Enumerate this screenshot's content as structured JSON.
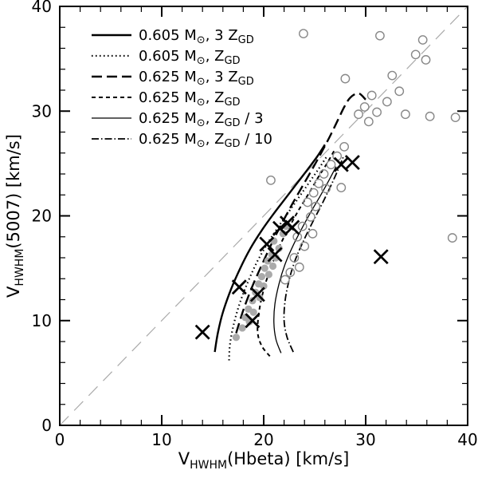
{
  "chart_data": {
    "type": "scatter",
    "title": "",
    "xlabel": {
      "pre": "V",
      "sub": "HWHM",
      "post": "(Hbeta) [km/s]"
    },
    "ylabel": {
      "pre": "V",
      "sub": "HWHM",
      "post": "(5007) [km/s]"
    },
    "xlim": [
      0,
      40
    ],
    "ylim": [
      0,
      40
    ],
    "xticks": [
      0,
      10,
      20,
      30,
      40
    ],
    "yticks": [
      0,
      10,
      20,
      30,
      40
    ],
    "minor_tick_step": 2,
    "grid": false,
    "legend_position": "top-left",
    "colors": {
      "axis": "#000000",
      "identity_line": "#aaaaaa",
      "open_circle": "#888888",
      "filled_circle": "#aaaaaa",
      "cross": "#000000",
      "track": "#000000"
    },
    "identity_line": {
      "from": [
        0,
        0
      ],
      "to": [
        40,
        40
      ],
      "style": "long-dash-gray"
    },
    "legend": [
      {
        "text1": "0.605 M",
        "sub1": "⊙",
        "text2": ", 3 Z",
        "sub2": "GD",
        "text3": "",
        "style": "solid-thick"
      },
      {
        "text1": "0.605 M",
        "sub1": "⊙",
        "text2": ", Z",
        "sub2": "GD",
        "text3": "",
        "style": "dotted"
      },
      {
        "text1": "0.625 M",
        "sub1": "⊙",
        "text2": ", 3 Z",
        "sub2": "GD",
        "text3": "",
        "style": "long-dash"
      },
      {
        "text1": "0.625 M",
        "sub1": "⊙",
        "text2": ", Z",
        "sub2": "GD",
        "text3": "",
        "style": "short-dash"
      },
      {
        "text1": "0.625 M",
        "sub1": "⊙",
        "text2": ", Z",
        "sub2": "GD",
        "text3": " / 3",
        "style": "solid-thin"
      },
      {
        "text1": "0.625 M",
        "sub1": "⊙",
        "text2": ", Z",
        "sub2": "GD",
        "text3": " / 10",
        "style": "dash-dot"
      }
    ],
    "tracks": [
      {
        "name": "0.605 Msun 3 Zgd",
        "style": "solid-thick",
        "points": [
          [
            15.2,
            7.0
          ],
          [
            15.5,
            8.8
          ],
          [
            16.0,
            10.8
          ],
          [
            16.8,
            13.0
          ],
          [
            17.7,
            15.0
          ],
          [
            18.7,
            16.9
          ],
          [
            19.8,
            18.6
          ],
          [
            20.9,
            20.1
          ],
          [
            22.0,
            21.5
          ],
          [
            23.1,
            22.9
          ],
          [
            24.2,
            24.3
          ],
          [
            25.2,
            25.6
          ],
          [
            26.0,
            26.8
          ]
        ]
      },
      {
        "name": "0.605 Msun Zgd",
        "style": "dotted",
        "points": [
          [
            16.6,
            6.2
          ],
          [
            16.7,
            7.8
          ],
          [
            17.1,
            9.8
          ],
          [
            17.7,
            11.8
          ],
          [
            18.5,
            13.8
          ],
          [
            19.4,
            15.7
          ],
          [
            20.4,
            17.4
          ],
          [
            21.4,
            18.9
          ],
          [
            22.4,
            20.3
          ],
          [
            23.4,
            21.7
          ],
          [
            24.4,
            23.1
          ],
          [
            25.4,
            24.5
          ],
          [
            26.2,
            25.7
          ]
        ]
      },
      {
        "name": "0.625 Msun 3 Zgd",
        "style": "long-dash",
        "points": [
          [
            17.3,
            8.8
          ],
          [
            18.0,
            11.0
          ],
          [
            18.9,
            13.3
          ],
          [
            19.9,
            15.5
          ],
          [
            20.9,
            17.6
          ],
          [
            21.9,
            19.5
          ],
          [
            22.9,
            21.3
          ],
          [
            23.9,
            23.0
          ],
          [
            24.9,
            24.7
          ],
          [
            25.8,
            26.3
          ],
          [
            26.6,
            27.8
          ],
          [
            27.3,
            29.2
          ],
          [
            27.9,
            30.4
          ],
          [
            28.5,
            31.3
          ],
          [
            29.3,
            31.7
          ],
          [
            30.0,
            31.1
          ]
        ]
      },
      {
        "name": "0.625 Msun Zgd",
        "style": "short-dash",
        "points": [
          [
            20.6,
            6.6
          ],
          [
            19.8,
            7.6
          ],
          [
            19.4,
            9.0
          ],
          [
            19.6,
            11.2
          ],
          [
            20.1,
            13.3
          ],
          [
            20.8,
            15.3
          ],
          [
            21.6,
            17.2
          ],
          [
            22.5,
            18.9
          ],
          [
            23.4,
            20.5
          ],
          [
            24.4,
            22.1
          ],
          [
            25.3,
            23.6
          ],
          [
            26.2,
            25.0
          ],
          [
            26.9,
            26.2
          ]
        ]
      },
      {
        "name": "0.625 Msun Zgd/3",
        "style": "solid-thin",
        "points": [
          [
            21.7,
            6.9
          ],
          [
            21.2,
            8.2
          ],
          [
            21.0,
            9.8
          ],
          [
            21.1,
            11.6
          ],
          [
            21.5,
            13.5
          ],
          [
            22.1,
            15.4
          ],
          [
            22.9,
            17.2
          ],
          [
            23.8,
            18.9
          ],
          [
            24.7,
            20.5
          ],
          [
            25.6,
            22.0
          ],
          [
            26.4,
            23.4
          ],
          [
            27.1,
            24.7
          ]
        ]
      },
      {
        "name": "0.625 Msun Zgd/10",
        "style": "dash-dot",
        "points": [
          [
            22.9,
            7.0
          ],
          [
            22.3,
            8.4
          ],
          [
            22.0,
            10.0
          ],
          [
            22.1,
            11.9
          ],
          [
            22.5,
            13.9
          ],
          [
            23.1,
            15.8
          ],
          [
            23.9,
            17.6
          ],
          [
            24.8,
            19.4
          ],
          [
            25.7,
            21.1
          ],
          [
            26.5,
            22.7
          ],
          [
            27.2,
            24.2
          ],
          [
            27.8,
            25.6
          ]
        ]
      }
    ],
    "open_circles": [
      [
        23.9,
        37.4
      ],
      [
        31.4,
        37.2
      ],
      [
        35.6,
        36.8
      ],
      [
        34.9,
        35.4
      ],
      [
        35.9,
        34.9
      ],
      [
        32.6,
        33.4
      ],
      [
        28.0,
        33.1
      ],
      [
        33.3,
        31.9
      ],
      [
        32.1,
        30.9
      ],
      [
        30.6,
        31.5
      ],
      [
        29.9,
        30.4
      ],
      [
        29.3,
        29.7
      ],
      [
        30.3,
        29.0
      ],
      [
        31.1,
        29.9
      ],
      [
        33.9,
        29.7
      ],
      [
        36.3,
        29.5
      ],
      [
        38.8,
        29.4
      ],
      [
        38.5,
        17.9
      ],
      [
        27.9,
        26.6
      ],
      [
        27.2,
        25.7
      ],
      [
        26.6,
        24.9
      ],
      [
        25.9,
        24.0
      ],
      [
        25.4,
        23.1
      ],
      [
        24.9,
        22.2
      ],
      [
        24.3,
        21.3
      ],
      [
        26.1,
        22.6
      ],
      [
        25.1,
        20.9
      ],
      [
        24.6,
        19.9
      ],
      [
        23.8,
        19.0
      ],
      [
        23.3,
        18.0
      ],
      [
        24.0,
        17.1
      ],
      [
        24.8,
        18.3
      ],
      [
        23.0,
        16.0
      ],
      [
        23.5,
        15.1
      ],
      [
        22.6,
        14.6
      ],
      [
        27.6,
        22.7
      ],
      [
        20.7,
        23.4
      ],
      [
        22.1,
        13.9
      ]
    ],
    "filled_circles": [
      [
        17.3,
        8.4
      ],
      [
        17.9,
        9.3
      ],
      [
        18.2,
        10.3
      ],
      [
        18.5,
        11.1
      ],
      [
        18.9,
        11.9
      ],
      [
        19.2,
        12.7
      ],
      [
        19.5,
        13.5
      ],
      [
        19.8,
        14.2
      ],
      [
        20.1,
        15.0
      ],
      [
        20.4,
        15.7
      ],
      [
        20.8,
        16.3
      ],
      [
        21.2,
        16.0
      ],
      [
        20.9,
        15.2
      ],
      [
        20.5,
        14.4
      ],
      [
        20.0,
        13.3
      ],
      [
        19.6,
        12.2
      ],
      [
        19.0,
        10.8
      ],
      [
        21.5,
        16.9
      ],
      [
        21.9,
        18.3
      ],
      [
        22.2,
        19.0
      ],
      [
        18.6,
        9.9
      ],
      [
        21.0,
        17.6
      ]
    ],
    "crosses": [
      [
        14.0,
        8.9
      ],
      [
        17.6,
        13.2
      ],
      [
        18.9,
        10.0
      ],
      [
        19.4,
        12.5
      ],
      [
        20.3,
        17.3
      ],
      [
        21.1,
        16.3
      ],
      [
        21.6,
        18.8
      ],
      [
        22.3,
        19.3
      ],
      [
        22.8,
        18.9
      ],
      [
        27.6,
        24.9
      ],
      [
        28.7,
        25.1
      ],
      [
        31.5,
        16.1
      ]
    ]
  }
}
